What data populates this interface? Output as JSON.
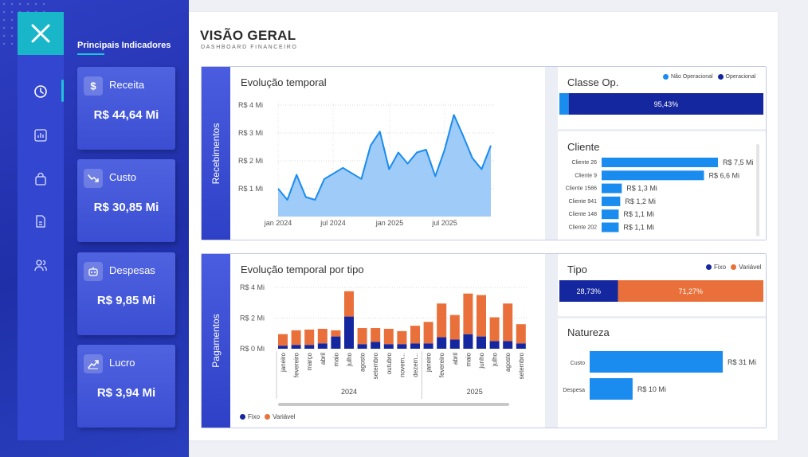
{
  "header": {
    "title": "VISÃO GERAL",
    "subtitle": "DASHBOARD FINANCEIRO"
  },
  "sidebar": {
    "nav": [
      {
        "icon": "clock-icon",
        "active": true
      },
      {
        "icon": "bar-chart-icon",
        "active": false
      },
      {
        "icon": "shopping-bag-icon",
        "active": false
      },
      {
        "icon": "document-icon",
        "active": false
      },
      {
        "icon": "users-icon",
        "active": false
      }
    ]
  },
  "kpis": {
    "title": "Principais Indicadores",
    "items": [
      {
        "label": "Receita",
        "value": "R$ 44,64 Mi",
        "icon": "dollar-icon"
      },
      {
        "label": "Custo",
        "value": "R$ 30,85 Mi",
        "icon": "trend-down-icon"
      },
      {
        "label": "Despesas",
        "value": "R$ 9,85 Mi",
        "icon": "robot-icon"
      },
      {
        "label": "Lucro",
        "value": "R$ 3,94 Mi",
        "icon": "trend-up-icon"
      }
    ]
  },
  "recebimentos": {
    "label": "Recebimentos",
    "evolucao": {
      "title": "Evolução temporal",
      "chart_data": {
        "type": "area",
        "y_ticks": [
          "R$ 1 Mi",
          "R$ 2 Mi",
          "R$ 3 Mi",
          "R$ 4 Mi"
        ],
        "x_ticks": [
          "jan 2024",
          "jul 2024",
          "jan 2025",
          "jul 2025"
        ],
        "ylim": [
          0,
          4
        ],
        "values": [
          1.0,
          0.6,
          1.5,
          0.7,
          0.6,
          1.35,
          1.55,
          1.75,
          1.55,
          1.35,
          2.55,
          3.05,
          1.7,
          2.3,
          1.9,
          2.3,
          2.4,
          1.45,
          2.4,
          3.65,
          2.9,
          2.1,
          1.7,
          2.55
        ],
        "color": "#1a8cf0",
        "fill": "#9ecbf7",
        "grid": true
      }
    },
    "classe": {
      "title": "Classe Op.",
      "legend": [
        {
          "name": "Não Operacional",
          "color": "#1a8cf0"
        },
        {
          "name": "Operacional",
          "color": "#15279e"
        }
      ],
      "chart_data": {
        "type": "bar",
        "stacked_percent": true,
        "series": [
          {
            "name": "Não Operacional",
            "values": [
              4.57
            ]
          },
          {
            "name": "Operacional",
            "values": [
              95.43
            ]
          }
        ],
        "data_labels": [
          "95,43%"
        ]
      }
    },
    "cliente": {
      "title": "Cliente",
      "chart_data": {
        "type": "bar",
        "orientation": "horizontal",
        "categories": [
          "Cliente 26",
          "Cliente 9",
          "Cliente 1586",
          "Cliente 941",
          "Cliente 148",
          "Cliente 202"
        ],
        "values": [
          7.5,
          6.6,
          1.3,
          1.2,
          1.1,
          1.1
        ],
        "data_labels": [
          "R$ 7,5 Mi",
          "R$ 6,6 Mi",
          "R$ 1,3 Mi",
          "R$ 1,2 Mi",
          "R$ 1,1 Mi",
          "R$ 1,1 Mi"
        ],
        "color": "#1a8cf0"
      }
    }
  },
  "pagamentos": {
    "label": "Pagamentos",
    "evolucao": {
      "title": "Evolução temporal por tipo",
      "chart_data": {
        "type": "bar",
        "stacked": true,
        "y_ticks": [
          "R$ 0 Mi",
          "R$ 2 Mi",
          "R$ 4 Mi"
        ],
        "ylim": [
          0,
          4
        ],
        "categories": [
          "janeiro",
          "fevereiro",
          "março",
          "abril",
          "maio",
          "julho",
          "agosto",
          "setembro",
          "outubro",
          "novem...",
          "dezem...",
          "janeiro",
          "fevereiro",
          "abril",
          "maio",
          "junho",
          "julho",
          "agosto",
          "setembro"
        ],
        "years": [
          {
            "label": "2024",
            "from": 0,
            "to": 10
          },
          {
            "label": "2025",
            "from": 11,
            "to": 18
          }
        ],
        "series": [
          {
            "name": "Fixo",
            "color": "#15279e",
            "values": [
              0.2,
              0.25,
              0.25,
              0.35,
              0.8,
              2.1,
              0.3,
              0.45,
              0.3,
              0.3,
              0.35,
              0.35,
              0.75,
              0.6,
              0.95,
              0.8,
              0.5,
              0.5,
              0.35
            ]
          },
          {
            "name": "Variável",
            "color": "#e9703a",
            "values": [
              0.75,
              0.95,
              1.0,
              0.95,
              0.4,
              1.65,
              1.05,
              0.9,
              1.0,
              0.85,
              1.15,
              1.4,
              2.2,
              1.6,
              2.65,
              2.7,
              1.55,
              2.45,
              1.25
            ]
          }
        ],
        "legend": "bottom-left"
      },
      "legend": [
        {
          "name": "Fixo",
          "color": "#15279e"
        },
        {
          "name": "Variável",
          "color": "#e9703a"
        }
      ]
    },
    "tipo": {
      "title": "Tipo",
      "legend": [
        {
          "name": "Fixo",
          "color": "#15279e"
        },
        {
          "name": "Variável",
          "color": "#e9703a"
        }
      ],
      "chart_data": {
        "type": "bar",
        "stacked_percent": true,
        "series": [
          {
            "name": "Fixo",
            "values": [
              28.73
            ]
          },
          {
            "name": "Variável",
            "values": [
              71.27
            ]
          }
        ],
        "data_labels": [
          "28,73%",
          "71,27%"
        ]
      }
    },
    "natureza": {
      "title": "Natureza",
      "chart_data": {
        "type": "bar",
        "orientation": "horizontal",
        "categories": [
          "Custo",
          "Despesa"
        ],
        "values": [
          31,
          10
        ],
        "data_labels": [
          "R$ 31 Mi",
          "R$ 10 Mi"
        ],
        "color": "#1a8cf0"
      }
    }
  }
}
